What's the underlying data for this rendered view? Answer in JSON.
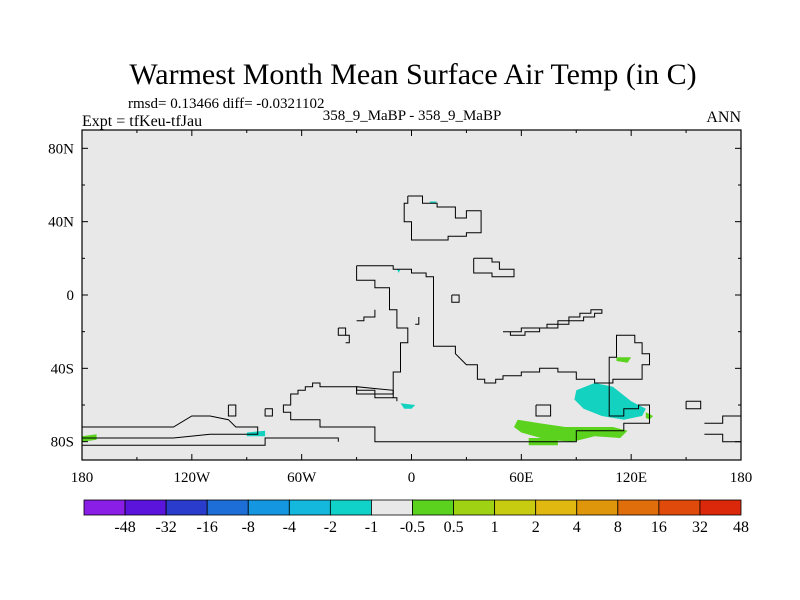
{
  "chart_data": {
    "type": "heatmap",
    "title": "Warmest Month Mean Surface Air Temp (in C)",
    "stats_text": "rmsd= 0.13466 diff= -0.0321102",
    "left_label": "Expt = tfKeu-tfJau",
    "center_label": "358_9_MaBP - 358_9_MaBP",
    "right_label": "ANN",
    "x_ticks": [
      {
        "value": -180,
        "label": "180"
      },
      {
        "value": -120,
        "label": "120W"
      },
      {
        "value": -60,
        "label": "60W"
      },
      {
        "value": 0,
        "label": "0"
      },
      {
        "value": 60,
        "label": "60E"
      },
      {
        "value": 120,
        "label": "120E"
      },
      {
        "value": 180,
        "label": "180"
      }
    ],
    "y_ticks": [
      {
        "value": 80,
        "label": "80N"
      },
      {
        "value": 40,
        "label": "40N"
      },
      {
        "value": 0,
        "label": "0"
      },
      {
        "value": -40,
        "label": "40S"
      },
      {
        "value": -80,
        "label": "80S"
      }
    ],
    "xlim": [
      -180,
      180
    ],
    "ylim": [
      -90,
      90
    ],
    "background_color": "#e8e8e8",
    "colorbar": {
      "colors": [
        "#8a1ee6",
        "#5a14dc",
        "#2a3ccc",
        "#1e6ed8",
        "#1496e0",
        "#14b8dc",
        "#10d2c8",
        "#e8e8e8",
        "#5ad21e",
        "#a0d214",
        "#c8cc10",
        "#e0b810",
        "#e0960a",
        "#e06e0a",
        "#e04a0a",
        "#dc280a"
      ],
      "labels": [
        "-48",
        "-32",
        "-16",
        "-8",
        "-4",
        "-2",
        "-1",
        "-0.5",
        "0.5",
        "1",
        "2",
        "4",
        "8",
        "16",
        "32",
        "48"
      ]
    },
    "coastlines": [
      [
        [
          -2,
          54
        ],
        [
          6,
          54
        ],
        [
          6,
          50
        ],
        [
          14,
          50
        ],
        [
          14,
          48
        ],
        [
          24,
          48
        ],
        [
          24,
          42
        ],
        [
          30,
          42
        ],
        [
          30,
          46
        ],
        [
          38,
          46
        ],
        [
          38,
          34
        ],
        [
          30,
          34
        ],
        [
          30,
          32
        ],
        [
          20,
          32
        ],
        [
          20,
          30
        ],
        [
          0,
          30
        ],
        [
          0,
          40
        ],
        [
          -4,
          40
        ],
        [
          -4,
          50
        ],
        [
          -2,
          50
        ],
        [
          -2,
          54
        ]
      ],
      [
        [
          -30,
          16
        ],
        [
          -10,
          16
        ],
        [
          -10,
          14
        ],
        [
          0,
          14
        ],
        [
          0,
          12
        ],
        [
          8,
          12
        ],
        [
          8,
          10
        ],
        [
          12,
          10
        ],
        [
          12,
          -28
        ],
        [
          24,
          -28
        ],
        [
          24,
          -32
        ],
        [
          30,
          -38
        ],
        [
          36,
          -38
        ],
        [
          36,
          -46
        ],
        [
          40,
          -46
        ],
        [
          40,
          -48
        ],
        [
          46,
          -48
        ],
        [
          46,
          -46
        ],
        [
          50,
          -46
        ],
        [
          50,
          -44
        ],
        [
          60,
          -44
        ],
        [
          60,
          -42
        ],
        [
          70,
          -42
        ],
        [
          70,
          -40
        ],
        [
          80,
          -40
        ],
        [
          80,
          -42
        ],
        [
          90,
          -42
        ],
        [
          90,
          -46
        ],
        [
          100,
          -46
        ],
        [
          100,
          -48
        ],
        [
          110,
          -48
        ],
        [
          110,
          -46
        ],
        [
          126,
          -46
        ],
        [
          126,
          -38
        ],
        [
          130,
          -38
        ],
        [
          130,
          -32
        ],
        [
          126,
          -32
        ],
        [
          126,
          -26
        ],
        [
          122,
          -26
        ],
        [
          122,
          -22
        ],
        [
          112,
          -22
        ],
        [
          112,
          -34
        ],
        [
          108,
          -34
        ],
        [
          108,
          -66
        ],
        [
          116,
          -66
        ],
        [
          116,
          -62
        ],
        [
          124,
          -62
        ],
        [
          124,
          -60
        ],
        [
          130,
          -60
        ],
        [
          130,
          -70
        ],
        [
          116,
          -70
        ],
        [
          116,
          -74
        ],
        [
          90,
          -74
        ],
        [
          90,
          -80
        ],
        [
          -20,
          -80
        ],
        [
          -20,
          -72
        ],
        [
          -50,
          -72
        ],
        [
          -50,
          -68
        ],
        [
          -66,
          -68
        ],
        [
          -66,
          -64
        ],
        [
          -70,
          -64
        ],
        [
          -70,
          -60
        ],
        [
          -66,
          -60
        ],
        [
          -66,
          -54
        ],
        [
          -62,
          -54
        ],
        [
          -62,
          -52
        ],
        [
          -58,
          -52
        ],
        [
          -58,
          -50
        ],
        [
          -54,
          -50
        ],
        [
          -54,
          -48
        ],
        [
          -50,
          -48
        ],
        [
          -50,
          -50
        ],
        [
          -30,
          -50
        ],
        [
          -30,
          -52
        ],
        [
          -20,
          -52
        ],
        [
          -20,
          -56
        ],
        [
          -10,
          -56
        ],
        [
          -10,
          -42
        ],
        [
          -6,
          -42
        ],
        [
          -6,
          -26
        ],
        [
          -2,
          -26
        ],
        [
          -2,
          -18
        ],
        [
          -8,
          -18
        ],
        [
          -8,
          -8
        ],
        [
          -12,
          -8
        ],
        [
          -12,
          4
        ],
        [
          -20,
          4
        ],
        [
          -20,
          8
        ],
        [
          -30,
          8
        ],
        [
          -30,
          16
        ]
      ],
      [
        [
          -100,
          -60
        ],
        [
          -96,
          -60
        ],
        [
          -96,
          -66
        ],
        [
          -100,
          -66
        ],
        [
          -100,
          -60
        ]
      ],
      [
        [
          -80,
          -62
        ],
        [
          -76,
          -62
        ],
        [
          -76,
          -66
        ],
        [
          -80,
          -66
        ],
        [
          -80,
          -62
        ]
      ],
      [
        [
          -180,
          -72
        ],
        [
          -130,
          -72
        ],
        [
          -120,
          -66
        ],
        [
          -110,
          -66
        ],
        [
          -100,
          -68
        ],
        [
          -96,
          -72
        ],
        [
          -84,
          -72
        ],
        [
          -84,
          -76
        ],
        [
          -110,
          -76
        ],
        [
          -130,
          -78
        ],
        [
          -180,
          -78
        ]
      ],
      [
        [
          -180,
          -82
        ],
        [
          -80,
          -82
        ],
        [
          -80,
          -78
        ],
        [
          -40,
          -78
        ],
        [
          -40,
          -80
        ]
      ],
      [
        [
          -30,
          -52
        ],
        [
          -30,
          -50
        ],
        [
          -10,
          -52
        ],
        [
          -10,
          -54
        ],
        [
          -30,
          -54
        ],
        [
          -30,
          -52
        ]
      ],
      [
        [
          -40,
          -18
        ],
        [
          -36,
          -18
        ],
        [
          -36,
          -22
        ],
        [
          -40,
          -22
        ],
        [
          -40,
          -18
        ]
      ],
      [
        [
          -36,
          -22
        ],
        [
          -34,
          -22
        ],
        [
          -34,
          -26
        ],
        [
          -36,
          -26
        ]
      ],
      [
        [
          50,
          -20
        ],
        [
          54,
          -20
        ],
        [
          54,
          -22
        ],
        [
          62,
          -22
        ],
        [
          62,
          -20
        ],
        [
          70,
          -20
        ],
        [
          70,
          -18
        ],
        [
          80,
          -18
        ],
        [
          80,
          -16
        ],
        [
          86,
          -16
        ],
        [
          86,
          -14
        ],
        [
          94,
          -14
        ],
        [
          94,
          -12
        ],
        [
          100,
          -12
        ],
        [
          100,
          -10
        ],
        [
          104,
          -10
        ],
        [
          104,
          -8
        ],
        [
          98,
          -8
        ],
        [
          98,
          -10
        ],
        [
          92,
          -10
        ],
        [
          92,
          -12
        ],
        [
          86,
          -12
        ],
        [
          86,
          -14
        ],
        [
          80,
          -14
        ],
        [
          80,
          -16
        ],
        [
          74,
          -16
        ],
        [
          74,
          -18
        ],
        [
          60,
          -18
        ],
        [
          60,
          -20
        ],
        [
          52,
          -20
        ]
      ],
      [
        [
          34,
          20
        ],
        [
          44,
          20
        ],
        [
          44,
          18
        ],
        [
          48,
          18
        ],
        [
          48,
          14
        ],
        [
          56,
          14
        ],
        [
          56,
          10
        ],
        [
          44,
          10
        ],
        [
          44,
          12
        ],
        [
          34,
          12
        ],
        [
          34,
          20
        ]
      ],
      [
        [
          22,
          0
        ],
        [
          26,
          0
        ],
        [
          26,
          -4
        ],
        [
          22,
          -4
        ],
        [
          22,
          0
        ]
      ],
      [
        [
          68,
          -60
        ],
        [
          76,
          -60
        ],
        [
          76,
          -66
        ],
        [
          68,
          -66
        ],
        [
          68,
          -60
        ]
      ],
      [
        [
          150,
          -58
        ],
        [
          158,
          -58
        ],
        [
          158,
          -62
        ],
        [
          150,
          -62
        ],
        [
          150,
          -58
        ]
      ],
      [
        [
          160,
          -70
        ],
        [
          170,
          -70
        ],
        [
          170,
          -66
        ],
        [
          180,
          -66
        ]
      ],
      [
        [
          160,
          -76
        ],
        [
          170,
          -76
        ],
        [
          170,
          -80
        ],
        [
          180,
          -80
        ]
      ],
      [
        [
          -30,
          -14
        ],
        [
          -26,
          -14
        ],
        [
          -26,
          -12
        ],
        [
          -20,
          -12
        ],
        [
          -20,
          -8
        ]
      ],
      [
        [
          2,
          -16
        ],
        [
          4,
          -16
        ],
        [
          4,
          -12
        ]
      ],
      [
        [
          -10,
          -56
        ],
        [
          -8,
          -56
        ],
        [
          -8,
          -58
        ]
      ]
    ],
    "shaded_regions": [
      {
        "value": "-2..-1",
        "color": "#14d2c0",
        "points": [
          [
            90,
            -52
          ],
          [
            100,
            -48
          ],
          [
            110,
            -50
          ],
          [
            120,
            -58
          ],
          [
            128,
            -62
          ],
          [
            126,
            -66
          ],
          [
            116,
            -68
          ],
          [
            104,
            -66
          ],
          [
            94,
            -62
          ],
          [
            89,
            -57
          ]
        ]
      },
      {
        "value": "-2..-1",
        "color": "#14d2c0",
        "points": [
          [
            -6,
            -59
          ],
          [
            2,
            -60
          ],
          [
            0,
            -62
          ],
          [
            -4,
            -62
          ]
        ]
      },
      {
        "value": "-2..-1",
        "color": "#14d2c0",
        "points": [
          [
            -90,
            -75
          ],
          [
            -80,
            -74
          ],
          [
            -80,
            -77
          ],
          [
            -90,
            -77
          ]
        ]
      },
      {
        "value": "-2..-1",
        "color": "#14d2c0",
        "points": [
          [
            10,
            51
          ],
          [
            14,
            51
          ],
          [
            13,
            50
          ],
          [
            10,
            50
          ]
        ]
      },
      {
        "value": "-2..-1",
        "color": "#14d2c0",
        "points": [
          [
            -8,
            14
          ],
          [
            -6,
            14
          ],
          [
            -7,
            12
          ]
        ]
      },
      {
        "value": "0.5..1",
        "color": "#5ad21e",
        "points": [
          [
            58,
            -68
          ],
          [
            70,
            -70
          ],
          [
            84,
            -72
          ],
          [
            96,
            -72
          ],
          [
            110,
            -72
          ],
          [
            118,
            -74
          ],
          [
            114,
            -78
          ],
          [
            100,
            -77
          ],
          [
            88,
            -80
          ],
          [
            74,
            -79
          ],
          [
            60,
            -75
          ],
          [
            56,
            -72
          ]
        ]
      },
      {
        "value": "0.5..1",
        "color": "#5ad21e",
        "points": [
          [
            64,
            -78
          ],
          [
            80,
            -78
          ],
          [
            80,
            -82
          ],
          [
            64,
            -82
          ]
        ]
      },
      {
        "value": "0.5..1",
        "color": "#5ad21e",
        "points": [
          [
            112,
            -34
          ],
          [
            120,
            -34
          ],
          [
            118,
            -37
          ],
          [
            112,
            -36
          ]
        ]
      },
      {
        "value": "0.5..1",
        "color": "#5ad21e",
        "points": [
          [
            128,
            -64
          ],
          [
            132,
            -66
          ],
          [
            130,
            -68
          ],
          [
            128,
            -67
          ]
        ]
      },
      {
        "value": "0.5..1",
        "color": "#5ad21e",
        "points": [
          [
            -180,
            -77
          ],
          [
            -172,
            -76
          ],
          [
            -172,
            -79
          ],
          [
            -180,
            -80
          ]
        ]
      }
    ]
  }
}
